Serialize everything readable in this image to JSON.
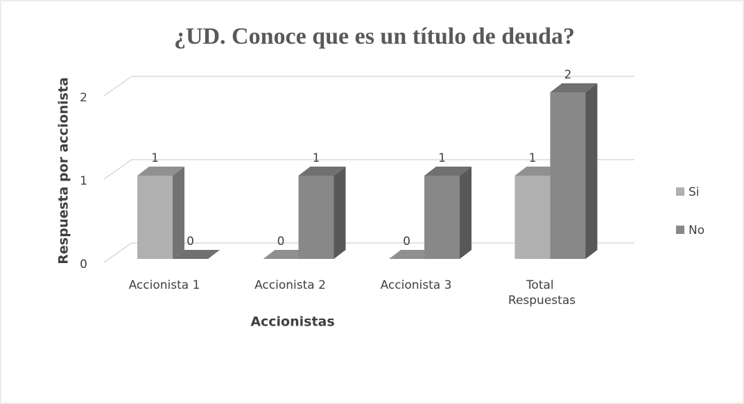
{
  "chart_data": {
    "type": "bar3d",
    "title": "¿UD. Conoce que es un título de deuda?",
    "x_label": "Accionistas",
    "y_label": "Respuesta por accionista",
    "categories": [
      "Accionista 1",
      "Accionista 2",
      "Accionista 3",
      "Total Respuestas"
    ],
    "series": [
      {
        "name": "Si",
        "color": "#b0b0b0",
        "values": [
          1,
          0,
          0,
          1
        ]
      },
      {
        "name": "No",
        "color": "#888888",
        "values": [
          0,
          1,
          1,
          2
        ]
      }
    ],
    "ylim": [
      0,
      2
    ],
    "yticks": [
      0,
      1,
      2
    ],
    "grid": true,
    "legend": "right"
  }
}
